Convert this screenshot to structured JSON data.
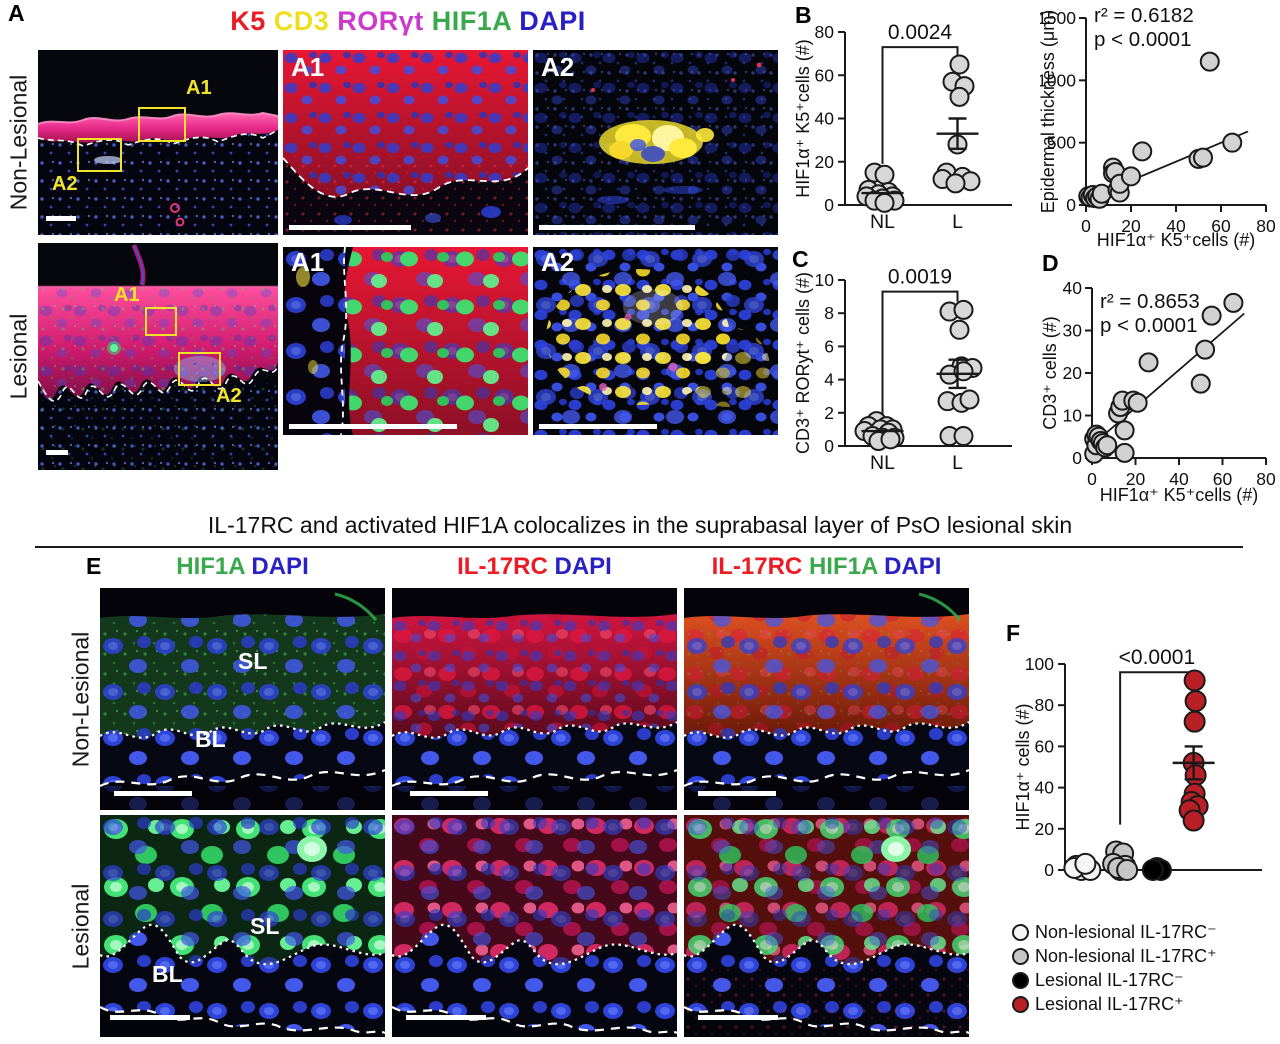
{
  "figure": {
    "panels": {
      "a": "A",
      "b": "B",
      "c": "C",
      "d": "D",
      "e": "E",
      "f": "F"
    },
    "panelA": {
      "stain_title": [
        {
          "text": "K5 ",
          "color": "#ed1b24"
        },
        {
          "text": "CD3 ",
          "color": "#eedf1e"
        },
        {
          "text": "RORγt ",
          "color": "#cb3bcb"
        },
        {
          "text": "HIF1A ",
          "color": "#3aa94d"
        },
        {
          "text": "DAPI",
          "color": "#2a21c4"
        }
      ],
      "row_labels": [
        "Non-Lesional",
        "Lesional"
      ],
      "roi_a1": "A1",
      "roi_a2": "A2"
    },
    "section_title": "IL-17RC and activated HIF1A colocalizes in the suprabasal layer of PsO lesional skin",
    "panelE": {
      "headers": [
        [
          {
            "text": "HIF1A ",
            "color": "#3aa94d"
          },
          {
            "text": "DAPI",
            "color": "#2a21c4"
          }
        ],
        [
          {
            "text": "IL-17RC ",
            "color": "#ed1b24"
          },
          {
            "text": "DAPI",
            "color": "#2a21c4"
          }
        ],
        [
          {
            "text": "IL-17RC ",
            "color": "#ed1b24"
          },
          {
            "text": "HIF1A ",
            "color": "#3aa94d"
          },
          {
            "text": "DAPI",
            "color": "#2a21c4"
          }
        ]
      ],
      "row_labels": [
        "Non-Lesional",
        "Lesional"
      ],
      "layer_sl": "SL",
      "layer_bl": "BL"
    },
    "panelF_legend": [
      {
        "label": "Non-lesional IL-17RC⁻",
        "color": "#f5f5f5"
      },
      {
        "label": "Non-lesional IL-17RC⁺",
        "color": "#c6c6c6"
      },
      {
        "label": "Lesional IL-17RC⁻",
        "color": "#000000"
      },
      {
        "label": "Lesional IL-17RC⁺",
        "color": "#b92025"
      }
    ]
  },
  "chart_data": [
    {
      "id": "chartB",
      "type": "strip",
      "p_label": "0.0024",
      "ylabel": "HIF1α⁺ K5⁺cells (#)",
      "ylim": [
        0,
        80
      ],
      "yticks": [
        0,
        20,
        40,
        60,
        80
      ],
      "groups": [
        {
          "label": "NL",
          "points": [
            [
              -8,
              15
            ],
            [
              2,
              14
            ],
            [
              -14,
              7
            ],
            [
              6,
              6
            ],
            [
              -4,
              5
            ],
            [
              10,
              4
            ],
            [
              -16,
              4
            ],
            [
              0,
              3
            ],
            [
              12,
              2
            ],
            [
              -8,
              2
            ],
            [
              2,
              1
            ]
          ],
          "mean": 5.5,
          "err": null
        },
        {
          "label": "L",
          "points": [
            [
              2,
              65
            ],
            [
              -5,
              57
            ],
            [
              7,
              55
            ],
            [
              2,
              50
            ],
            [
              0,
              28
            ],
            [
              -11,
              15
            ],
            [
              5,
              13
            ],
            [
              -15,
              12
            ],
            [
              13,
              11
            ],
            [
              -2,
              10
            ]
          ],
          "mean": 33,
          "err": 7
        }
      ],
      "bracket": {
        "top": 73,
        "legs": [
          19,
          66
        ],
        "groups": [
          0,
          1
        ]
      }
    },
    {
      "id": "chartB2",
      "type": "scatter",
      "r2_label": "r² = 0.6182",
      "p_label": "p < 0.0001",
      "xlabel": "HIF1α⁺ K5⁺cells (#)",
      "ylabel": "Epidermal thickness (μm)",
      "xlim": [
        0,
        80
      ],
      "ylim": [
        0,
        1500
      ],
      "xticks": [
        0,
        20,
        40,
        60,
        80
      ],
      "yticks": [
        0,
        500,
        1000,
        1500
      ],
      "points": [
        [
          1,
          70
        ],
        [
          2,
          60
        ],
        [
          3,
          80
        ],
        [
          4,
          55
        ],
        [
          5,
          70
        ],
        [
          6,
          50
        ],
        [
          7,
          90
        ],
        [
          12,
          300
        ],
        [
          12,
          255
        ],
        [
          13,
          265
        ],
        [
          14,
          120
        ],
        [
          15,
          100
        ],
        [
          15,
          170
        ],
        [
          20,
          230
        ],
        [
          25,
          430
        ],
        [
          50,
          370
        ],
        [
          52,
          380
        ],
        [
          55,
          1150
        ],
        [
          65,
          500
        ]
      ],
      "trend": [
        [
          2,
          60
        ],
        [
          72,
          590
        ]
      ]
    },
    {
      "id": "chartC",
      "type": "strip",
      "p_label": "0.0019",
      "ylabel": "CD3⁺ RORyt⁺ cells (#)",
      "ylim": [
        0,
        10
      ],
      "yticks": [
        0,
        2,
        4,
        6,
        8,
        10
      ],
      "groups": [
        {
          "label": "NL",
          "points": [
            [
              -6,
              1.5
            ],
            [
              -14,
              1.2
            ],
            [
              4,
              1.2
            ],
            [
              -2,
              1.0
            ],
            [
              10,
              1.0
            ],
            [
              -18,
              0.9
            ],
            [
              6,
              0.8
            ],
            [
              -10,
              0.6
            ],
            [
              0,
              0.5
            ],
            [
              12,
              0.5
            ],
            [
              -4,
              0.3
            ],
            [
              8,
              0.4
            ]
          ],
          "mean": 0.9,
          "err": null
        },
        {
          "label": "L",
          "points": [
            [
              -8,
              8.1
            ],
            [
              6,
              8.2
            ],
            [
              2,
              7.0
            ],
            [
              4,
              4.8
            ],
            [
              15,
              4.7
            ],
            [
              -8,
              4.3
            ],
            [
              6,
              4.5
            ],
            [
              -10,
              2.7
            ],
            [
              4,
              2.6
            ],
            [
              12,
              2.8
            ],
            [
              -8,
              0.6
            ],
            [
              6,
              0.6
            ]
          ],
          "mean": 4.35,
          "err": 0.85
        }
      ],
      "bracket": {
        "top": 9.3,
        "legs": [
          1.9,
          8.7
        ],
        "groups": [
          0,
          1
        ]
      }
    },
    {
      "id": "chartD",
      "type": "scatter",
      "r2_label": "r² = 0.8653",
      "p_label": "p < 0.0001",
      "xlabel": "HIF1α⁺ K5⁺cells (#)",
      "ylabel": "CD3⁺ cells (#)",
      "xlim": [
        0,
        80
      ],
      "ylim": [
        0,
        40
      ],
      "xticks": [
        0,
        20,
        40,
        60,
        80
      ],
      "yticks": [
        0,
        10,
        20,
        30,
        40
      ],
      "points": [
        [
          1,
          1
        ],
        [
          1,
          4.5
        ],
        [
          2,
          3
        ],
        [
          2,
          5.5
        ],
        [
          3,
          5
        ],
        [
          4,
          4
        ],
        [
          5,
          3.5
        ],
        [
          6,
          2.5
        ],
        [
          7,
          3
        ],
        [
          12,
          10.5
        ],
        [
          13,
          12
        ],
        [
          14,
          13.5
        ],
        [
          15,
          6.5
        ],
        [
          15,
          1.2
        ],
        [
          19,
          13.5
        ],
        [
          21,
          13
        ],
        [
          26,
          22.5
        ],
        [
          50,
          17.5
        ],
        [
          52,
          25.5
        ],
        [
          55,
          33.5
        ],
        [
          65,
          36.5
        ]
      ],
      "trend": [
        [
          0,
          3
        ],
        [
          70,
          34
        ]
      ]
    },
    {
      "id": "chartF",
      "type": "strip",
      "p_label": "<0.0001",
      "ylabel": "HIF1α⁺ cells (#)",
      "ylim": [
        0,
        100
      ],
      "yticks": [
        0,
        20,
        40,
        60,
        80,
        100
      ],
      "groups": [
        {
          "label": "",
          "color": "#f5f5f5",
          "points": [
            [
              -7,
              2
            ],
            [
              4,
              1
            ],
            [
              -2,
              0
            ],
            [
              7,
              0
            ],
            [
              -9,
              1
            ],
            [
              2,
              3
            ]
          ],
          "mean": null,
          "err": null
        },
        {
          "label": "",
          "color": "#c6c6c6",
          "points": [
            [
              -4,
              9
            ],
            [
              3,
              8
            ],
            [
              -7,
              3
            ],
            [
              5,
              2
            ],
            [
              0,
              0
            ],
            [
              -2,
              1
            ],
            [
              7,
              0
            ]
          ],
          "mean": null,
          "err": null
        },
        {
          "label": "",
          "color": "#000000",
          "points": [
            [
              0,
              1
            ],
            [
              4,
              0
            ],
            [
              -4,
              0
            ]
          ],
          "mean": null,
          "err": null
        },
        {
          "label": "",
          "color": "#b92025",
          "points": [
            [
              1,
              92
            ],
            [
              2,
              82
            ],
            [
              1,
              72
            ],
            [
              0,
              52
            ],
            [
              2,
              46
            ],
            [
              1,
              37
            ],
            [
              -2,
              33
            ],
            [
              4,
              31
            ],
            [
              -4,
              29
            ],
            [
              0,
              24
            ]
          ],
          "mean": 52,
          "err": 8
        }
      ],
      "bracket": {
        "top": 96,
        "legs": [
          22,
          92
        ],
        "groups": [
          1,
          3
        ]
      }
    }
  ]
}
